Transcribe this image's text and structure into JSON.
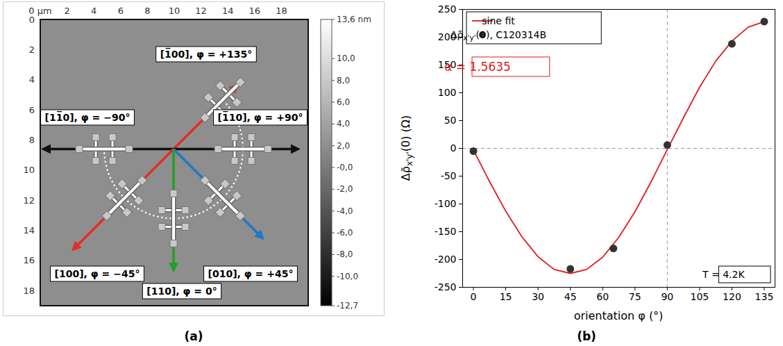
{
  "chart_data": [
    {
      "type": "image",
      "label": "(a)",
      "xlim": [
        0,
        20
      ],
      "ylim": [
        0,
        19
      ],
      "xticks": [
        {
          "value": 0,
          "label": "0 µm"
        },
        2,
        4,
        6,
        8,
        10,
        12,
        14,
        16,
        18
      ],
      "yticks": [
        0,
        2,
        4,
        6,
        8,
        10,
        12,
        14,
        16,
        18
      ],
      "colorbar": {
        "range": [
          -12.7,
          13.6
        ],
        "ticks": [
          {
            "value": 13.6,
            "label": "13,6 nm"
          },
          {
            "value": 10,
            "label": "10,0"
          },
          {
            "value": 8,
            "label": "8,0"
          },
          {
            "value": 6,
            "label": "6,0"
          },
          {
            "value": 4,
            "label": "4,0"
          },
          {
            "value": 2,
            "label": "2,0"
          },
          {
            "value": 0,
            "label": "-0,0"
          },
          {
            "value": -2,
            "label": "-2,0"
          },
          {
            "value": -4,
            "label": "-4,0"
          },
          {
            "value": -6,
            "label": "-6,0"
          },
          {
            "value": -8,
            "label": "-8,0"
          },
          {
            "value": -10,
            "label": "-10,0"
          },
          {
            "value": -12.7,
            "label": "-12,7"
          }
        ]
      },
      "annotations": [
        {
          "text": "[1̅00], φ = +135°",
          "direction": 135,
          "color": "#e52b2b"
        },
        {
          "text": "[11̅0], φ = −90°",
          "direction": -90,
          "color": "#111111"
        },
        {
          "text": "[1̅10], φ = +90°",
          "direction": 90,
          "color": "#111111"
        },
        {
          "text": "[100], φ = −45°",
          "direction": -45,
          "color": "#e52b2b"
        },
        {
          "text": "[010], φ = +45°",
          "direction": 45,
          "color": "#1f78c8"
        },
        {
          "text": "[110], φ = 0°",
          "direction": 0,
          "color": "#22a022"
        }
      ]
    },
    {
      "type": "scatter",
      "label": "(b)",
      "x_label": "orientation φ (°)",
      "y_label": "Δρ̃x'y'(0) (Ω)",
      "xlim": [
        -5,
        140
      ],
      "xticks": [
        0,
        15,
        30,
        45,
        60,
        75,
        90,
        105,
        120,
        135
      ],
      "ylim": [
        -250,
        250
      ],
      "yticks": [
        -250,
        -200,
        -150,
        -100,
        -50,
        0,
        50,
        100,
        150,
        200,
        250
      ],
      "legend": "top-left",
      "reference_lines": {
        "x": 90,
        "y": 0
      },
      "series": [
        {
          "name": "sine fit",
          "type": "line",
          "color": "#e41a1c",
          "x": [
            0,
            7.5,
            15,
            22.5,
            30,
            37.5,
            45,
            52.5,
            60,
            67.5,
            75,
            82.5,
            90,
            97.5,
            105,
            112.5,
            120,
            127.5,
            135
          ],
          "values": [
            -3,
            -60,
            -113,
            -159,
            -195,
            -218,
            -225,
            -218,
            -196,
            -160,
            -114,
            -60,
            -2,
            55,
            110,
            157,
            193,
            218,
            228
          ]
        },
        {
          "name": "Δρ̃x'y'(0), C120314B",
          "type": "scatter",
          "color": "#333333",
          "marker": "circle",
          "x": [
            0,
            45,
            65,
            90,
            120,
            135
          ],
          "values": [
            -5,
            -217,
            -180,
            6,
            188,
            228
          ]
        }
      ],
      "annotations": [
        {
          "text": "α = 1.5635",
          "color": "#e41a1c"
        },
        {
          "text": "T = 4.2K"
        }
      ]
    }
  ]
}
